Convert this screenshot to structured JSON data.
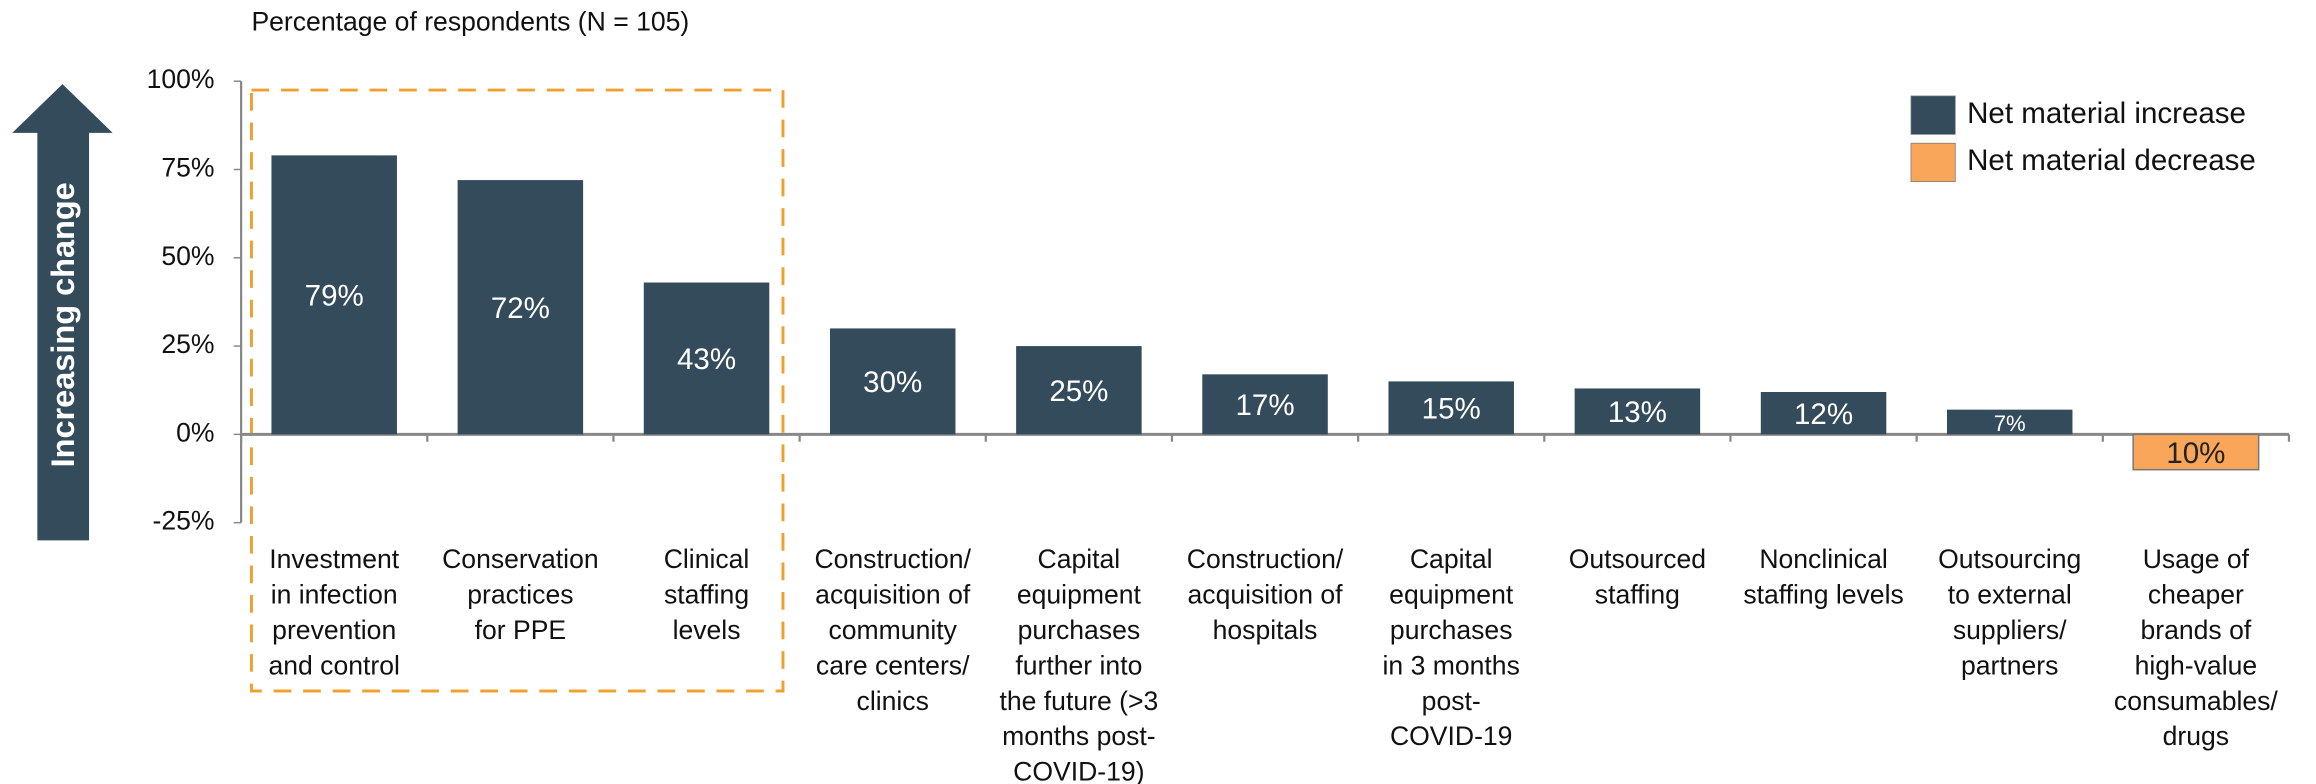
{
  "chart_data": {
    "type": "bar",
    "title": "Percentage of respondents (N = 105)",
    "y_label": "Increasing change",
    "categories": [
      [
        "Investment",
        "in infection",
        "prevention",
        "and control"
      ],
      [
        "Conservation",
        "practices",
        "for PPE"
      ],
      [
        "Clinical",
        "staffing",
        "levels"
      ],
      [
        "Construction/",
        "acquisition of",
        "community",
        "care centers/",
        "clinics"
      ],
      [
        "Capital",
        "equipment",
        "purchases",
        "further into",
        "the future (>3",
        "months post-",
        "COVID-19)"
      ],
      [
        "Construction/",
        "acquisition of",
        "hospitals"
      ],
      [
        "Capital",
        "equipment",
        "purchases",
        "in 3 months",
        "post-",
        "COVID-19"
      ],
      [
        "Outsourced",
        "staffing"
      ],
      [
        "Nonclinical",
        "staffing levels"
      ],
      [
        "Outsourcing",
        "to external",
        "suppliers/",
        "partners"
      ],
      [
        "Usage of",
        "cheaper",
        "brands of",
        "high-value",
        "consumables/",
        "drugs"
      ]
    ],
    "series": [
      {
        "name": "Net material increase",
        "color": "#344b5b",
        "values": [
          79,
          72,
          43,
          30,
          25,
          17,
          15,
          13,
          12,
          7,
          null
        ],
        "value_labels": [
          "79%",
          "72%",
          "43%",
          "30%",
          "25%",
          "17%",
          "15%",
          "13%",
          "12%",
          "7%",
          null
        ]
      },
      {
        "name": "Net material decrease",
        "color": "#f9a65a",
        "values": [
          null,
          null,
          null,
          null,
          null,
          null,
          null,
          null,
          null,
          null,
          -10
        ],
        "value_labels": [
          null,
          null,
          null,
          null,
          null,
          null,
          null,
          null,
          null,
          null,
          "10%"
        ]
      }
    ],
    "ylim": [
      -25,
      100
    ],
    "yticks": [
      {
        "value": -25,
        "label": "-25%"
      },
      {
        "value": 0,
        "label": "0%"
      },
      {
        "value": 25,
        "label": "25%"
      },
      {
        "value": 50,
        "label": "50%"
      },
      {
        "value": 75,
        "label": "75%"
      },
      {
        "value": 100,
        "label": "100%"
      }
    ],
    "legend": "top-right"
  }
}
